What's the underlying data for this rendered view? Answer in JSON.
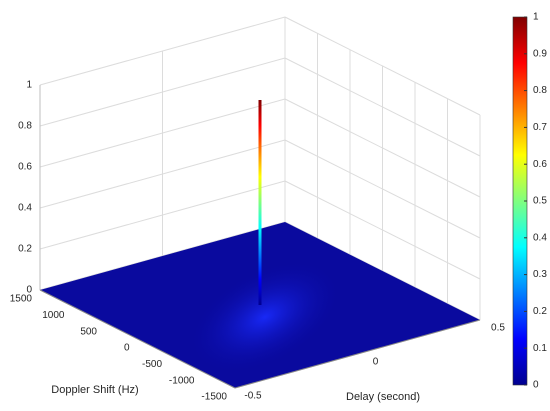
{
  "chart_data": {
    "type": "surface3d",
    "xlabel": "Delay (second)",
    "ylabel": "Doppler Shift (Hz)",
    "xlim": [
      -0.5,
      0.5
    ],
    "xticks": [
      -0.5,
      0,
      0.5
    ],
    "ylim": [
      -1500,
      1500
    ],
    "yticks": [
      -1500,
      -1000,
      -500,
      0,
      500,
      1000,
      1500
    ],
    "zlim": [
      0,
      1
    ],
    "zticks": [
      0,
      0.2,
      0.4,
      0.6,
      0.8,
      1
    ],
    "grid": true,
    "colormap": "jet",
    "colorbar": {
      "lim": [
        0,
        1
      ],
      "ticks": [
        0,
        0.1,
        0.2,
        0.3,
        0.4,
        0.5,
        0.6,
        0.7,
        0.8,
        0.9,
        1
      ]
    },
    "peak": {
      "x": 0,
      "y": 0,
      "z": 1
    }
  }
}
